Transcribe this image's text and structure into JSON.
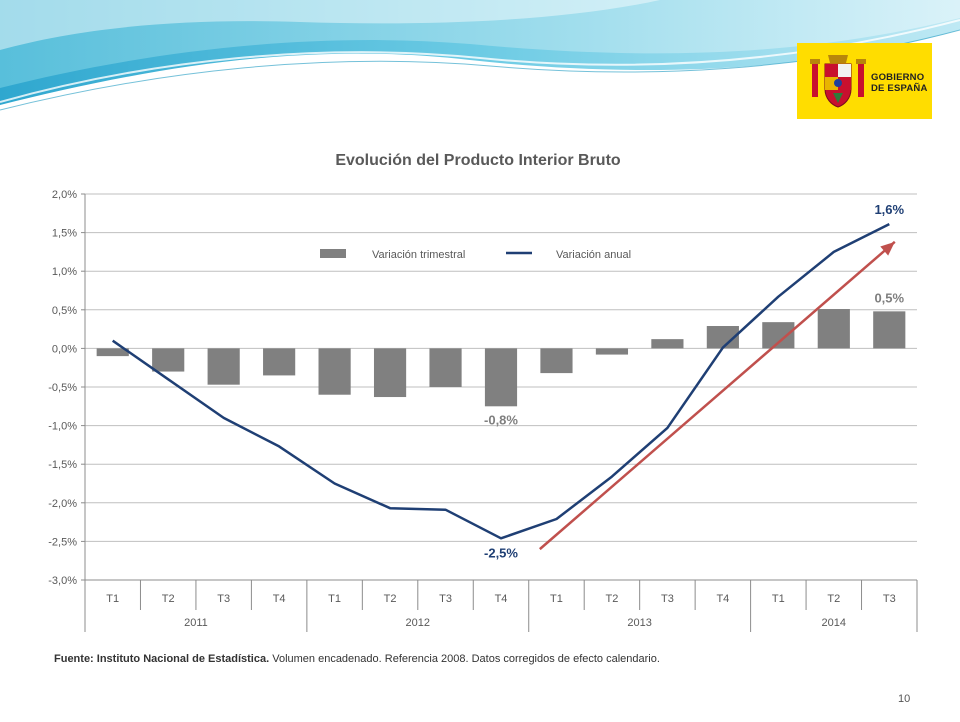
{
  "logo": {
    "line1": "GOBIERNO",
    "line2": "DE ESPAÑA",
    "bg_color": "#ffdd00"
  },
  "source": {
    "label": "Fuente: Instituto Nacional de Estadística.",
    "text": "Volumen encadenado. Referencia 2008. Datos corregidos de efecto calendario."
  },
  "page_number": "10",
  "chart_data": {
    "type": "bar+line",
    "title": "Evolución del Producto Interior Bruto",
    "xlabel": "",
    "ylabel": "",
    "ylim": [
      -3.0,
      2.0
    ],
    "yticks": [
      "2,0%",
      "1,5%",
      "1,0%",
      "0,5%",
      "0,0%",
      "-0,5%",
      "-1,0%",
      "-1,5%",
      "-2,0%",
      "-2,5%",
      "-3,0%"
    ],
    "grid": true,
    "legend_position": "top-center",
    "categories": [
      "T1",
      "T2",
      "T3",
      "T4",
      "T1",
      "T2",
      "T3",
      "T4",
      "T1",
      "T2",
      "T3",
      "T4",
      "T1",
      "T2",
      "T3"
    ],
    "groups": [
      {
        "label": "2011",
        "count": 4
      },
      {
        "label": "2012",
        "count": 4
      },
      {
        "label": "2013",
        "count": 4
      },
      {
        "label": "2014",
        "count": 3
      }
    ],
    "series": [
      {
        "name": "Variación trimestral",
        "kind": "bar",
        "color": "#808080",
        "values": [
          -0.1,
          -0.3,
          -0.47,
          -0.35,
          -0.6,
          -0.63,
          -0.5,
          -0.75,
          -0.32,
          -0.08,
          0.12,
          0.29,
          0.34,
          0.51,
          0.48
        ]
      },
      {
        "name": "Variación anual",
        "kind": "line",
        "color": "#1f3f74",
        "values": [
          0.1,
          -0.4,
          -0.9,
          -1.27,
          -1.75,
          -2.07,
          -2.09,
          -2.46,
          -2.21,
          -1.66,
          -1.03,
          0.01,
          0.67,
          1.25,
          1.61
        ]
      }
    ],
    "annotations": [
      {
        "text": "-0,8%",
        "series": "Variación trimestral",
        "index": 7,
        "color": "#7f7f7f"
      },
      {
        "text": "0,5%",
        "series": "Variación trimestral",
        "index": 14,
        "color": "#7f7f7f"
      },
      {
        "text": "-2,5%",
        "series": "Variación anual",
        "index": 7,
        "color": "#1f3f74"
      },
      {
        "text": "1,6%",
        "series": "Variación anual",
        "index": 14,
        "color": "#1f3f74"
      }
    ],
    "trend_arrow": {
      "color": "#c0504d",
      "from": {
        "index": 8.2,
        "value": -2.6
      },
      "to": {
        "index": 14.6,
        "value": 1.38
      }
    }
  }
}
